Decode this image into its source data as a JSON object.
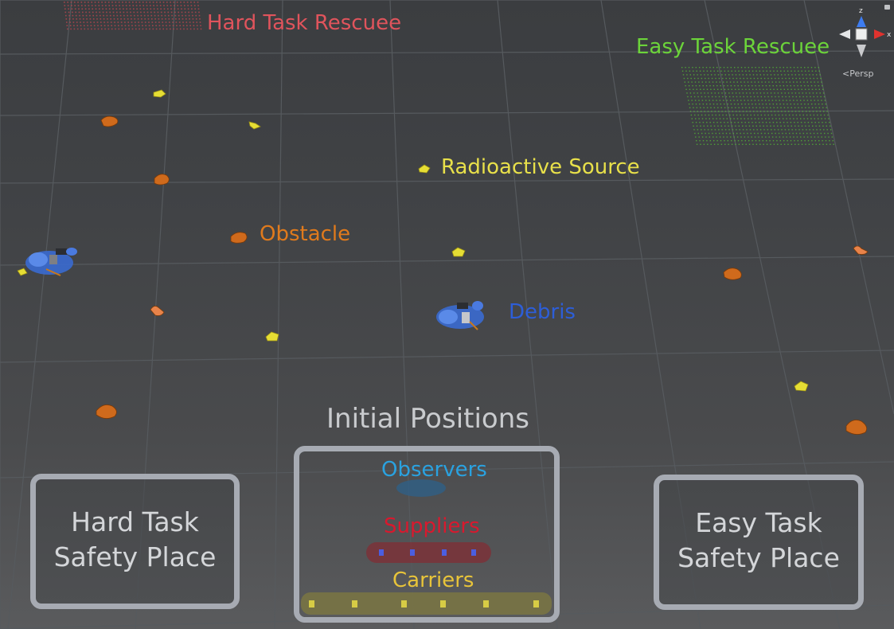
{
  "labels": {
    "hard_task_rescuee": "Hard Task Rescuee",
    "easy_task_rescuee": "Easy Task Rescuee",
    "radioactive_source": "Radioactive Source",
    "obstacle": "Obstacle",
    "debris": "Debris",
    "initial_positions": "Initial Positions",
    "observers": "Observers",
    "suppliers": "Suppliers",
    "carriers": "Carriers"
  },
  "zones": {
    "hard_safety_line1": "Hard Task",
    "hard_safety_line2": "Safety Place",
    "easy_safety_line1": "Easy Task",
    "easy_safety_line2": "Safety Place"
  },
  "gizmo": {
    "axis_z": "z",
    "axis_x": "x",
    "projection": "Persp"
  },
  "colors": {
    "hard_rescuee": "#e0545c",
    "easy_rescuee": "#6cd43a",
    "radioactive": "#e8e04a",
    "obstacle": "#e07a1c",
    "debris": "#2d5ed8",
    "observers": "#2aa2e0",
    "suppliers": "#d8192e",
    "carriers": "#e8c43a",
    "zone_border": "#a7abb3"
  }
}
